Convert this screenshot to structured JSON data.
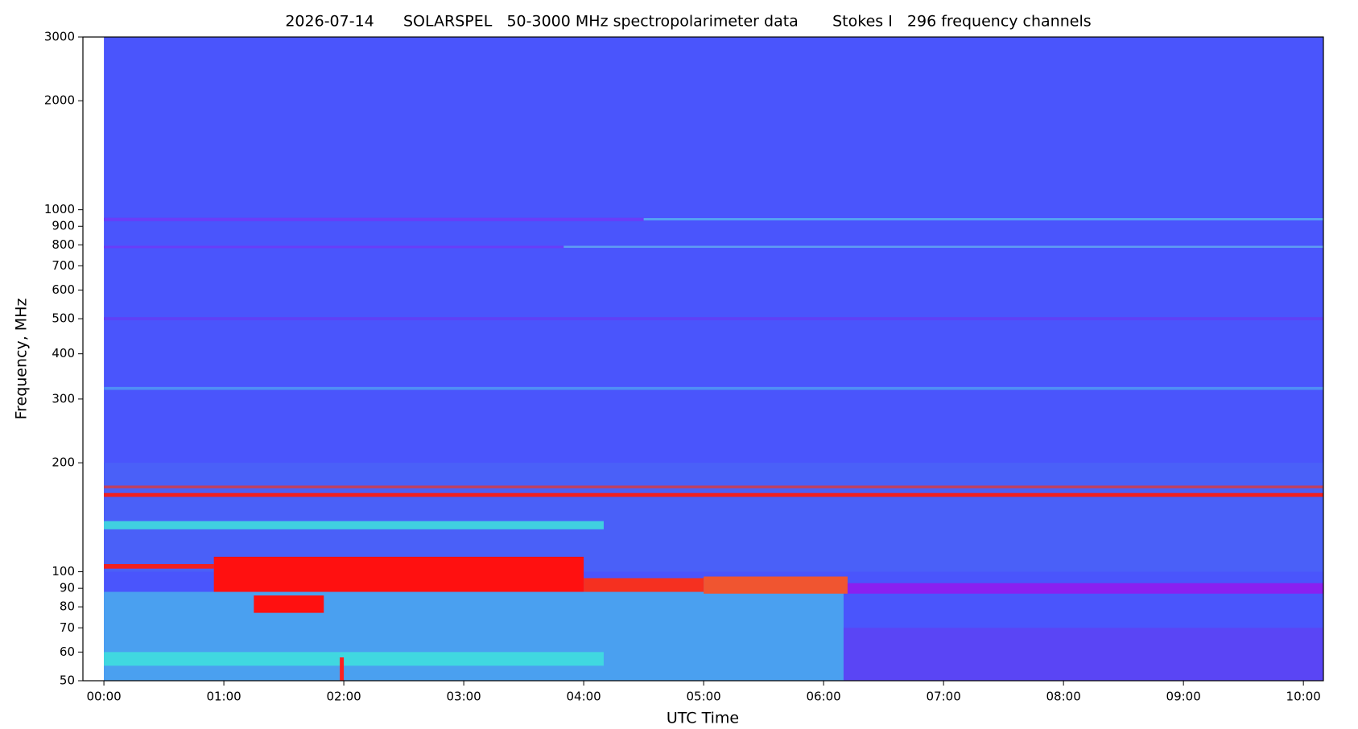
{
  "chart_data": {
    "type": "spectrogram",
    "title": "2026-07-14      SOLARSPEL   50-3000 MHz spectropolarimeter data       Stokes I   296 frequency channels",
    "x_label": "UTC Time",
    "y_label": "Frequency, MHz",
    "y_scale": "log",
    "xlim": [
      -10.5,
      610
    ],
    "ylim": [
      50,
      3000
    ],
    "xticks": [
      {
        "value": 0,
        "label": "00:00"
      },
      {
        "value": 60,
        "label": "01:00"
      },
      {
        "value": 120,
        "label": "02:00"
      },
      {
        "value": 180,
        "label": "03:00"
      },
      {
        "value": 240,
        "label": "04:00"
      },
      {
        "value": 300,
        "label": "05:00"
      },
      {
        "value": 360,
        "label": "06:00"
      },
      {
        "value": 420,
        "label": "07:00"
      },
      {
        "value": 480,
        "label": "08:00"
      },
      {
        "value": 540,
        "label": "09:00"
      },
      {
        "value": 600,
        "label": "10:00"
      }
    ],
    "yticks": [
      50,
      60,
      70,
      80,
      90,
      100,
      200,
      300,
      400,
      500,
      600,
      700,
      800,
      900,
      1000,
      2000,
      3000
    ],
    "cells": [
      {
        "x": [
          0,
          610
        ],
        "y": [
          50,
          3000
        ],
        "color": "#4a55fc"
      },
      {
        "x": [
          0,
          610
        ],
        "y": [
          100,
          200
        ],
        "color": "#4a60f8"
      },
      {
        "x": [
          0,
          270
        ],
        "y": [
          930,
          950
        ],
        "color": "#6a3cf8"
      },
      {
        "x": [
          270,
          610
        ],
        "y": [
          935,
          948
        ],
        "color": "#55a8f2"
      },
      {
        "x": [
          0,
          230
        ],
        "y": [
          783,
          795
        ],
        "color": "#6a3cf8"
      },
      {
        "x": [
          230,
          610
        ],
        "y": [
          785,
          795
        ],
        "color": "#5f9ef2"
      },
      {
        "x": [
          0,
          610
        ],
        "y": [
          495,
          505
        ],
        "color": "#6040f5"
      },
      {
        "x": [
          0,
          610
        ],
        "y": [
          318,
          324
        ],
        "color": "#4f8ff5"
      },
      {
        "x": [
          0,
          610
        ],
        "y": [
          170,
          173
        ],
        "color": "#c04060"
      },
      {
        "x": [
          0,
          610
        ],
        "y": [
          161,
          165
        ],
        "color": "#f02020"
      },
      {
        "x": [
          0,
          250
        ],
        "y": [
          131,
          138
        ],
        "color": "#40d0e0"
      },
      {
        "x": [
          0,
          370
        ],
        "y": [
          50,
          88
        ],
        "color": "#4aa0f0"
      },
      {
        "x": [
          370,
          610
        ],
        "y": [
          50,
          70
        ],
        "color": "#5a45f5"
      },
      {
        "x": [
          0,
          250
        ],
        "y": [
          55,
          60
        ],
        "color": "#40d8e0"
      },
      {
        "x": [
          0,
          55
        ],
        "y": [
          102,
          105
        ],
        "color": "#f02020"
      },
      {
        "x": [
          55,
          240
        ],
        "y": [
          88,
          110
        ],
        "color": "#ff1010"
      },
      {
        "x": [
          240,
          300
        ],
        "y": [
          88,
          96
        ],
        "color": "#f53020"
      },
      {
        "x": [
          300,
          372
        ],
        "y": [
          87,
          97
        ],
        "color": "#f05530"
      },
      {
        "x": [
          372,
          610
        ],
        "y": [
          87,
          93
        ],
        "color": "#8a20f0"
      },
      {
        "x": [
          75,
          110
        ],
        "y": [
          77,
          86
        ],
        "color": "#ff1010"
      },
      {
        "x": [
          118,
          120
        ],
        "y": [
          50,
          58
        ],
        "color": "#ff2020"
      }
    ]
  }
}
